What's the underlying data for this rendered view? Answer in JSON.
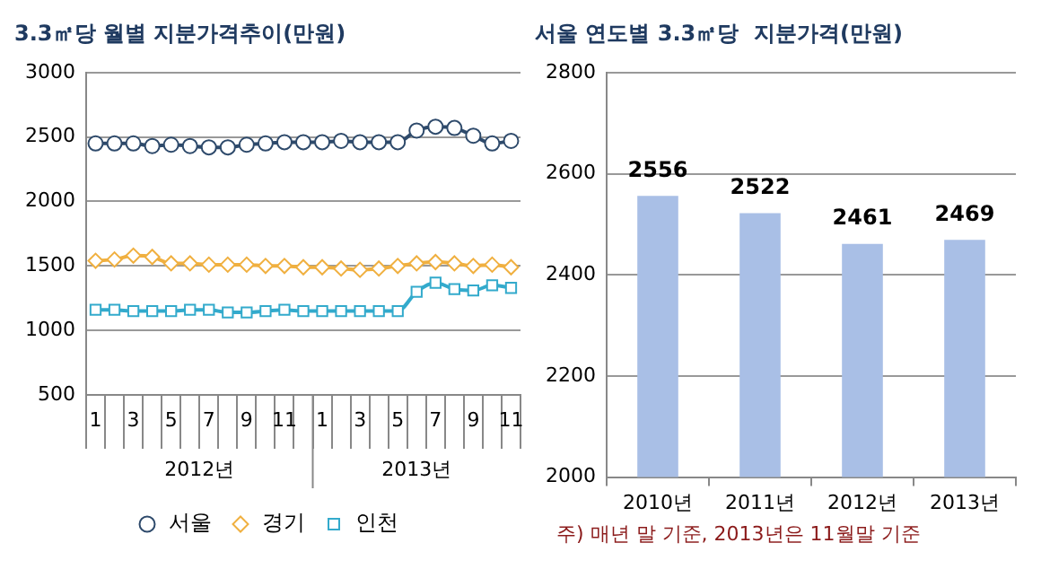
{
  "chart_data": [
    {
      "type": "line",
      "title": "3.3㎡당 월별 지분가격추이(만원)",
      "categories": [
        "1",
        null,
        "3",
        null,
        "5",
        null,
        "7",
        null,
        "9",
        null,
        "11",
        null,
        "1",
        null,
        "3",
        null,
        "5",
        null,
        "7",
        null,
        "9",
        null,
        "11"
      ],
      "annotations": [
        "2012년",
        "2013년"
      ],
      "series": [
        {
          "name": "서울",
          "color": "#2e4a6b",
          "marker": "circle",
          "values": [
            2450,
            2450,
            2450,
            2430,
            2440,
            2430,
            2420,
            2420,
            2440,
            2450,
            2460,
            2460,
            2460,
            2470,
            2460,
            2460,
            2460,
            2550,
            2580,
            2570,
            2510,
            2450,
            2470
          ]
        },
        {
          "name": "경기",
          "color": "#f0b040",
          "marker": "diamond",
          "values": [
            1540,
            1550,
            1580,
            1570,
            1520,
            1520,
            1510,
            1510,
            1510,
            1500,
            1500,
            1490,
            1490,
            1480,
            1470,
            1480,
            1500,
            1520,
            1530,
            1520,
            1500,
            1510,
            1490
          ]
        },
        {
          "name": "인천",
          "color": "#33aacc",
          "marker": "square",
          "values": [
            1160,
            1160,
            1150,
            1150,
            1150,
            1160,
            1160,
            1140,
            1140,
            1150,
            1160,
            1150,
            1150,
            1150,
            1150,
            1150,
            1150,
            1300,
            1370,
            1320,
            1310,
            1350,
            1330
          ]
        }
      ],
      "ylim": [
        500,
        3000
      ],
      "yticks": [
        500,
        1000,
        1500,
        2000,
        2500,
        3000
      ],
      "grid": "y",
      "legend": "bottom"
    },
    {
      "type": "bar",
      "title": "서울 연도별 3.3㎡당  지분가격(만원)",
      "categories": [
        "2010년",
        "2011년",
        "2012년",
        "2013년"
      ],
      "values": [
        2556,
        2522,
        2461,
        2469
      ],
      "color": "#a9bfe6",
      "ylim": [
        2000,
        2800
      ],
      "yticks": [
        2000,
        2200,
        2400,
        2600,
        2800
      ],
      "grid": "y",
      "data_labels": true,
      "annotations": [
        "주) 매년 말 기준, 2013년은 11월말 기준"
      ]
    }
  ]
}
